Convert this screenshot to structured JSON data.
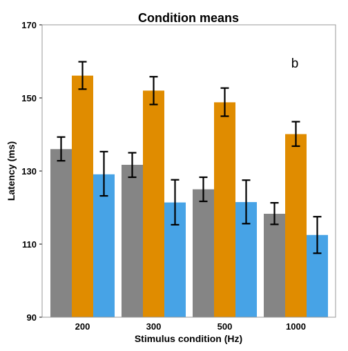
{
  "chart_data": {
    "type": "bar",
    "title": "Condition means",
    "xlabel": "Stimulus condition (Hz)",
    "ylabel": "Latency (ms)",
    "panel_label": "b",
    "categories": [
      "200",
      "300",
      "500",
      "1000"
    ],
    "ylim": [
      90,
      170
    ],
    "yticks": [
      90,
      110,
      130,
      150,
      170
    ],
    "grid": false,
    "series": [
      {
        "color": "#858585",
        "values": [
          136.0,
          131.7,
          125.0,
          118.3
        ],
        "err_low": [
          132.8,
          128.3,
          121.7,
          115.4
        ],
        "err_high": [
          139.3,
          135.0,
          128.3,
          121.3
        ]
      },
      {
        "color": "#e08c00",
        "values": [
          156.1,
          152.0,
          148.8,
          140.1
        ],
        "err_low": [
          152.4,
          148.2,
          145.0,
          136.8
        ],
        "err_high": [
          159.9,
          155.8,
          152.7,
          143.5
        ]
      },
      {
        "color": "#47a3e6",
        "values": [
          129.1,
          121.4,
          121.5,
          112.5
        ],
        "err_low": [
          123.2,
          115.3,
          115.6,
          107.5
        ],
        "err_high": [
          135.3,
          127.6,
          127.5,
          117.5
        ]
      }
    ]
  }
}
